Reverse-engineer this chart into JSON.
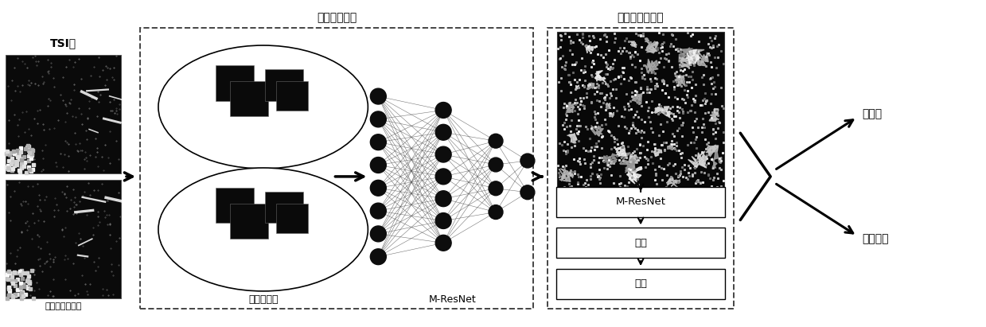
{
  "title_tsi": "TSI图",
  "title_deep": "深度学习模型",
  "title_patient": "基于病人的预测",
  "label_patches": "训练小切片",
  "label_mresnet_nn": "M-ResNet",
  "label_mresnet_box": "M-ResNet",
  "label_aggregate": "聚合",
  "label_classify": "分类",
  "label_adaptive": "自适应生成小片",
  "label_metastasis_yes": "转移？",
  "label_metastasis_no": "非转移？",
  "bg_color": "#ffffff",
  "node_color": "#0d0d0d",
  "dashed_color": "#444444",
  "figw": 12.39,
  "figh": 4.11,
  "dpi": 100
}
